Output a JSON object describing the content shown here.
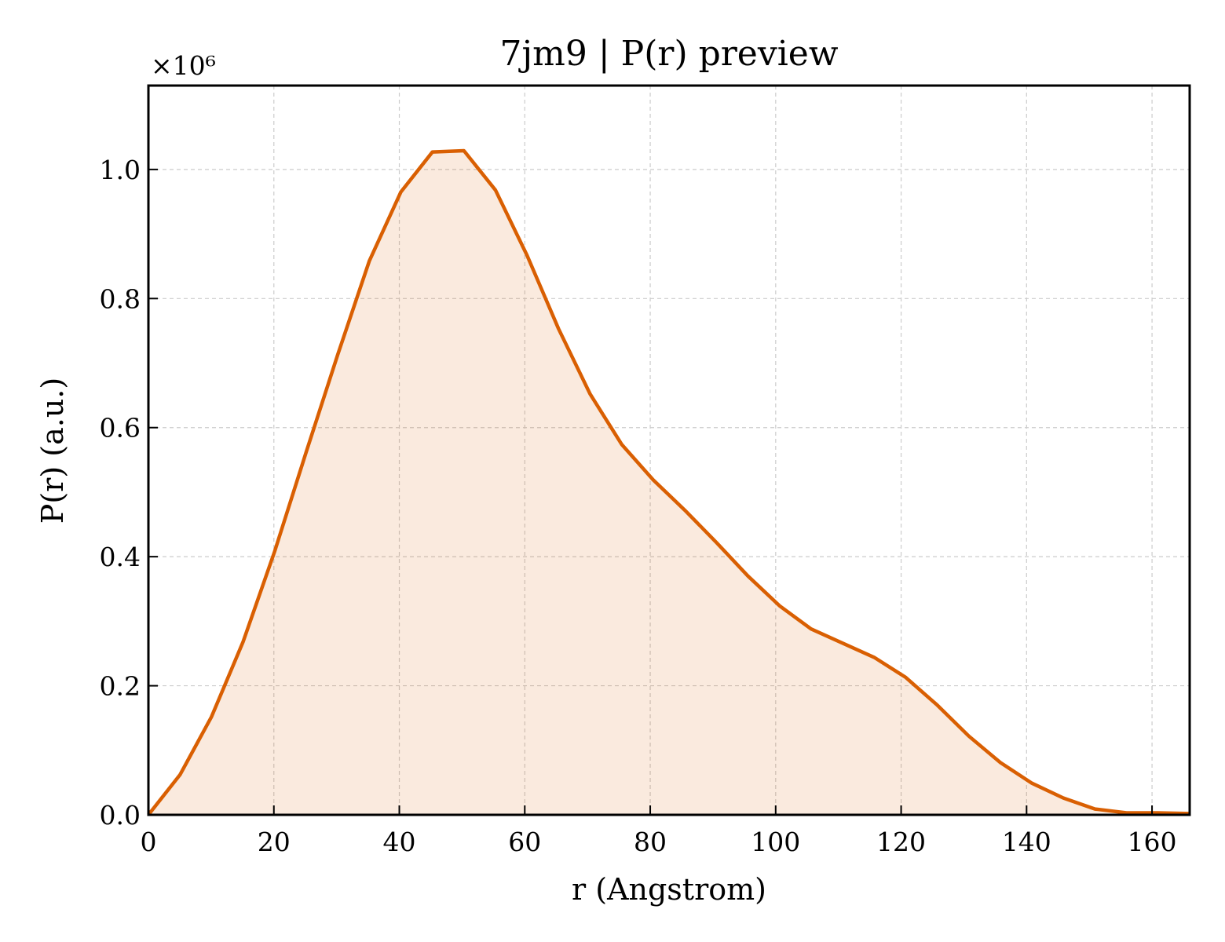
{
  "chart_data": {
    "type": "area",
    "title": "7jm9 | P(r) preview",
    "xlabel": "r (Angstrom)",
    "ylabel": "P(r) (a.u.)",
    "y_offset_label": "×10⁶",
    "y_scale": 1000000,
    "xlim": [
      0,
      166
    ],
    "ylim": [
      0,
      1.13
    ],
    "x_ticks": [
      0,
      20,
      40,
      60,
      80,
      100,
      120,
      140,
      160
    ],
    "x_tick_labels": [
      "0",
      "20",
      "40",
      "60",
      "80",
      "100",
      "120",
      "140",
      "160"
    ],
    "y_ticks": [
      0,
      0.2,
      0.4,
      0.6,
      0.8,
      1.0
    ],
    "y_tick_labels": [
      "0.0",
      "0.2",
      "0.4",
      "0.6",
      "0.8",
      "1.0"
    ],
    "grid": true,
    "series": [
      {
        "color": "#d95f02",
        "fill_color": "#d95f02",
        "fill_opacity": 0.13,
        "x": [
          0,
          5.03,
          10.06,
          15.09,
          20.12,
          25.15,
          30.18,
          35.21,
          40.24,
          45.27,
          50.3,
          55.33,
          60.36,
          65.39,
          70.42,
          75.45,
          80.48,
          85.52,
          90.55,
          95.58,
          100.61,
          105.64,
          110.67,
          115.7,
          120.73,
          125.76,
          130.79,
          135.82,
          140.85,
          145.88,
          150.91,
          155.94,
          160.97,
          166.0
        ],
        "y": [
          0.0,
          0.062,
          0.152,
          0.268,
          0.408,
          0.562,
          0.713,
          0.858,
          0.965,
          1.027,
          1.029,
          0.968,
          0.867,
          0.753,
          0.652,
          0.574,
          0.519,
          0.472,
          0.422,
          0.37,
          0.324,
          0.288,
          0.266,
          0.244,
          0.213,
          0.17,
          0.122,
          0.081,
          0.049,
          0.026,
          0.009,
          0.003,
          0.003,
          0.002
        ]
      }
    ]
  }
}
